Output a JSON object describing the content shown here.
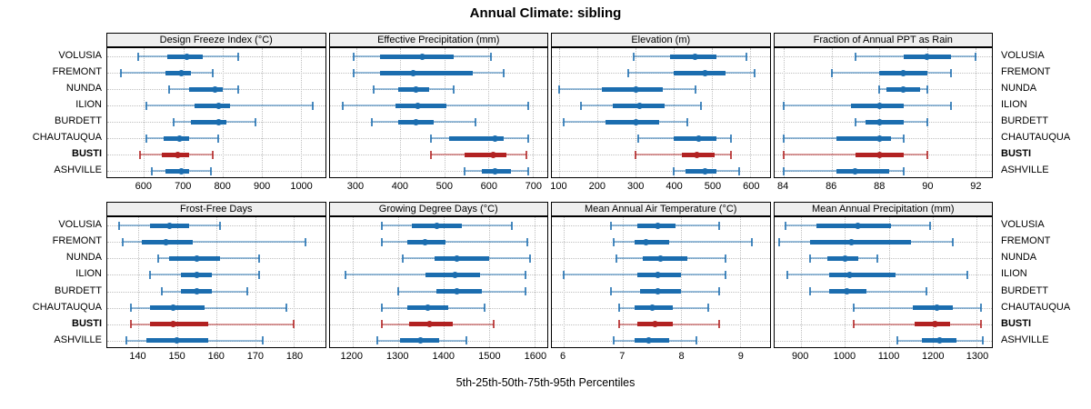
{
  "title": "Annual Climate: sibling",
  "caption": "5th-25th-50th-75th-95th Percentiles",
  "colors": {
    "series": "#1b6daf",
    "highlight": "#b22222",
    "header_bg": "#efefef",
    "grid": "#bfbfbf",
    "border": "#000000"
  },
  "categories": [
    "VOLUSIA",
    "FREMONT",
    "NUNDA",
    "ILION",
    "BURDETT",
    "CHAUTAUQUA",
    "BUSTI",
    "ASHVILLE"
  ],
  "highlight_category": "BUSTI",
  "chart_data": {
    "type": "scatter",
    "variant": "horizontal percentile interval plot (dot = median, thick bar = 25th-75th, thin line with caps = 5th-95th)",
    "percentile_labels": [
      "5th",
      "25th",
      "50th",
      "75th",
      "95th"
    ],
    "note": "panels[].values rows align with top-level categories; each row is [p5,p25,p50,p75,p95]",
    "legend_position": "none",
    "grid": "dotted, vertical at ticks and horizontal at category rows",
    "panels": [
      {
        "title": "Design Freeze Index (°C)",
        "xlim": [
          506,
          1062
        ],
        "ticks": [
          600,
          700,
          800,
          900,
          1000
        ],
        "values": [
          [
            585,
            660,
            710,
            750,
            840
          ],
          [
            540,
            655,
            695,
            720,
            775
          ],
          [
            665,
            715,
            780,
            800,
            840
          ],
          [
            605,
            730,
            790,
            820,
            1030
          ],
          [
            675,
            720,
            790,
            810,
            885
          ],
          [
            605,
            650,
            690,
            715,
            790
          ],
          [
            590,
            645,
            685,
            715,
            775
          ],
          [
            620,
            655,
            695,
            715,
            770
          ]
        ]
      },
      {
        "title": "Effective Precipitation (mm)",
        "xlim": [
          240,
          733
        ],
        "ticks": [
          300,
          400,
          500,
          600,
          700
        ],
        "values": [
          [
            295,
            355,
            450,
            520,
            605
          ],
          [
            295,
            355,
            430,
            565,
            635
          ],
          [
            340,
            395,
            435,
            465,
            520
          ],
          [
            270,
            390,
            440,
            505,
            690
          ],
          [
            335,
            395,
            435,
            475,
            570
          ],
          [
            470,
            510,
            615,
            635,
            690
          ],
          [
            470,
            545,
            610,
            640,
            685
          ],
          [
            545,
            585,
            615,
            650,
            690
          ]
        ]
      },
      {
        "title": "Elevation (m)",
        "xlim": [
          80,
          650
        ],
        "ticks": [
          100,
          200,
          300,
          400,
          500,
          600
        ],
        "values": [
          [
            295,
            390,
            455,
            510,
            590
          ],
          [
            280,
            400,
            480,
            535,
            610
          ],
          [
            100,
            210,
            300,
            370,
            455
          ],
          [
            155,
            240,
            310,
            375,
            470
          ],
          [
            110,
            220,
            300,
            360,
            435
          ],
          [
            305,
            400,
            465,
            510,
            550
          ],
          [
            300,
            420,
            460,
            505,
            550
          ],
          [
            400,
            430,
            480,
            510,
            570
          ]
        ]
      },
      {
        "title": "Fraction of Annual PPT as Rain",
        "xlim": [
          83.6,
          92.7
        ],
        "ticks": [
          84,
          86,
          88,
          90,
          92
        ],
        "values": [
          [
            87,
            89,
            90,
            91,
            92
          ],
          [
            86,
            88,
            89,
            90,
            91
          ],
          [
            88,
            88.3,
            89,
            89.7,
            90
          ],
          [
            84,
            86.8,
            88,
            89,
            91
          ],
          [
            87,
            87.4,
            88,
            89,
            90
          ],
          [
            84,
            86.2,
            88,
            88.5,
            89
          ],
          [
            84,
            87,
            88,
            89,
            90
          ],
          [
            84,
            86.2,
            87,
            88.4,
            89
          ]
        ]
      },
      {
        "title": "Frost-Free Days",
        "xlim": [
          132,
          188
        ],
        "ticks": [
          140,
          150,
          160,
          170,
          180
        ],
        "values": [
          [
            135,
            143,
            148,
            153,
            161
          ],
          [
            136,
            141,
            147,
            154,
            183
          ],
          [
            145,
            148,
            155,
            161,
            171
          ],
          [
            143,
            151,
            155,
            159,
            171
          ],
          [
            146,
            151,
            155,
            159,
            168
          ],
          [
            138,
            143,
            149,
            157,
            178
          ],
          [
            138,
            143,
            149,
            158,
            180
          ],
          [
            137,
            142,
            150,
            158,
            172
          ]
        ]
      },
      {
        "title": "Growing Degree Days (°C)",
        "xlim": [
          1150,
          1628
        ],
        "ticks": [
          1200,
          1300,
          1400,
          1500,
          1600
        ],
        "values": [
          [
            1265,
            1330,
            1385,
            1440,
            1550
          ],
          [
            1265,
            1320,
            1360,
            1405,
            1585
          ],
          [
            1310,
            1380,
            1430,
            1500,
            1590
          ],
          [
            1185,
            1360,
            1425,
            1480,
            1580
          ],
          [
            1300,
            1385,
            1430,
            1485,
            1580
          ],
          [
            1265,
            1320,
            1365,
            1410,
            1490
          ],
          [
            1265,
            1325,
            1370,
            1420,
            1510
          ],
          [
            1255,
            1305,
            1350,
            1390,
            1450
          ]
        ]
      },
      {
        "title": "Mean Annual Air Temperature (°C)",
        "xlim": [
          5.8,
          9.5
        ],
        "ticks": [
          6,
          7,
          8,
          9
        ],
        "values": [
          [
            6.8,
            7.25,
            7.6,
            7.9,
            8.65
          ],
          [
            6.85,
            7.2,
            7.4,
            7.8,
            9.2
          ],
          [
            6.9,
            7.35,
            7.65,
            8.1,
            8.75
          ],
          [
            6.0,
            7.25,
            7.6,
            8.0,
            8.75
          ],
          [
            6.8,
            7.3,
            7.6,
            8.0,
            8.65
          ],
          [
            6.95,
            7.2,
            7.5,
            7.85,
            8.45
          ],
          [
            6.95,
            7.25,
            7.55,
            7.85,
            8.65
          ],
          [
            6.85,
            7.2,
            7.45,
            7.8,
            8.25
          ]
        ]
      },
      {
        "title": "Mean Annual Precipitation (mm)",
        "xlim": [
          839,
          1335
        ],
        "ticks": [
          900,
          1000,
          1100,
          1200,
          1300
        ],
        "values": [
          [
            865,
            935,
            1030,
            1105,
            1195
          ],
          [
            850,
            920,
            1015,
            1150,
            1245
          ],
          [
            920,
            960,
            1000,
            1030,
            1075
          ],
          [
            870,
            965,
            1010,
            1115,
            1280
          ],
          [
            920,
            965,
            1005,
            1050,
            1185
          ],
          [
            1020,
            1155,
            1210,
            1245,
            1310
          ],
          [
            1020,
            1160,
            1205,
            1240,
            1310
          ],
          [
            1120,
            1175,
            1215,
            1255,
            1315
          ]
        ]
      }
    ]
  }
}
